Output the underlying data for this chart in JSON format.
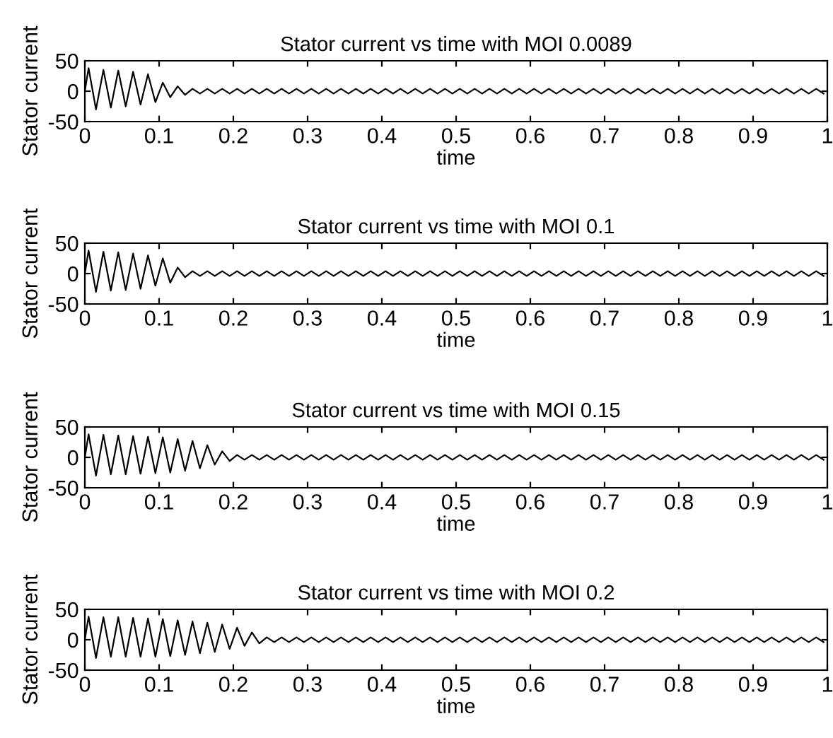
{
  "chart_data": [
    {
      "type": "line",
      "title": "Stator current vs time with MOI 0.0089",
      "xlabel": "time",
      "ylabel": "Stator current",
      "xlim": [
        0,
        1
      ],
      "ylim": [
        -50,
        50
      ],
      "xticks": [
        0,
        0.1,
        0.2,
        0.3,
        0.4,
        0.5,
        0.6,
        0.7,
        0.8,
        0.9,
        1
      ],
      "yticks": [
        -50,
        0,
        50
      ],
      "x": [
        0,
        0.005,
        0.015,
        0.025,
        0.035,
        0.045,
        0.055,
        0.065,
        0.075,
        0.085,
        0.095,
        0.105,
        0.115,
        0.125,
        0.135,
        0.145,
        0.155,
        0.165,
        0.175,
        0.185,
        0.195,
        0.205,
        0.215,
        0.225,
        0.235,
        0.245,
        0.255,
        0.265,
        0.275,
        0.285,
        0.295,
        0.305,
        0.315,
        0.325,
        0.335,
        0.345,
        0.355,
        0.365,
        0.375,
        0.385,
        0.395,
        0.405,
        0.415,
        0.425,
        0.435,
        0.445,
        0.455,
        0.465,
        0.475,
        0.485,
        0.495,
        0.505,
        0.515,
        0.525,
        0.535,
        0.545,
        0.555,
        0.565,
        0.575,
        0.585,
        0.595,
        0.605,
        0.615,
        0.625,
        0.635,
        0.645,
        0.655,
        0.665,
        0.675,
        0.685,
        0.695,
        0.705,
        0.715,
        0.725,
        0.735,
        0.745,
        0.755,
        0.765,
        0.775,
        0.785,
        0.795,
        0.805,
        0.815,
        0.825,
        0.835,
        0.845,
        0.855,
        0.865,
        0.875,
        0.885,
        0.895,
        0.905,
        0.915,
        0.925,
        0.935,
        0.945,
        0.955,
        0.965,
        0.975,
        0.985,
        0.995
      ],
      "series": [
        {
          "color": "#000000",
          "values": [
            0,
            38,
            -30,
            35,
            -27,
            34,
            -25,
            32,
            -22,
            28,
            -18,
            14,
            -10,
            8,
            -6,
            4,
            -4,
            4,
            -4,
            4,
            -4,
            4,
            -4,
            4,
            -4,
            4,
            -4,
            4,
            -4,
            4,
            -4,
            4,
            -4,
            4,
            -4,
            4,
            -4,
            4,
            -4,
            4,
            -4,
            4,
            -4,
            4,
            -4,
            4,
            -4,
            4,
            -4,
            4,
            -4,
            4,
            -4,
            4,
            -4,
            4,
            -4,
            4,
            -4,
            4,
            -4,
            4,
            -4,
            4,
            -4,
            4,
            -4,
            4,
            -4,
            4,
            -4,
            4,
            -4,
            4,
            -4,
            4,
            -4,
            4,
            -4,
            4,
            -4,
            4,
            -4,
            4,
            -4,
            4,
            -4,
            4,
            -4,
            4,
            -4,
            4,
            -4,
            4,
            -4,
            4,
            -4,
            4,
            -4,
            4,
            -4
          ]
        }
      ]
    },
    {
      "type": "line",
      "title": "Stator current vs time with MOI 0.1",
      "xlabel": "time",
      "ylabel": "Stator current",
      "xlim": [
        0,
        1
      ],
      "ylim": [
        -50,
        50
      ],
      "xticks": [
        0,
        0.1,
        0.2,
        0.3,
        0.4,
        0.5,
        0.6,
        0.7,
        0.8,
        0.9,
        1
      ],
      "yticks": [
        -50,
        0,
        50
      ],
      "x": [
        0,
        0.005,
        0.015,
        0.025,
        0.035,
        0.045,
        0.055,
        0.065,
        0.075,
        0.085,
        0.095,
        0.105,
        0.115,
        0.125,
        0.135,
        0.145,
        0.155,
        0.165,
        0.175,
        0.185,
        0.195,
        0.205,
        0.215,
        0.225,
        0.235,
        0.245,
        0.255,
        0.265,
        0.275,
        0.285,
        0.295,
        0.305,
        0.315,
        0.325,
        0.335,
        0.345,
        0.355,
        0.365,
        0.375,
        0.385,
        0.395,
        0.405,
        0.415,
        0.425,
        0.435,
        0.445,
        0.455,
        0.465,
        0.475,
        0.485,
        0.495,
        0.505,
        0.515,
        0.525,
        0.535,
        0.545,
        0.555,
        0.565,
        0.575,
        0.585,
        0.595,
        0.605,
        0.615,
        0.625,
        0.635,
        0.645,
        0.655,
        0.665,
        0.675,
        0.685,
        0.695,
        0.705,
        0.715,
        0.725,
        0.735,
        0.745,
        0.755,
        0.765,
        0.775,
        0.785,
        0.795,
        0.805,
        0.815,
        0.825,
        0.835,
        0.845,
        0.855,
        0.865,
        0.875,
        0.885,
        0.895,
        0.905,
        0.915,
        0.925,
        0.935,
        0.945,
        0.955,
        0.965,
        0.975,
        0.985,
        0.995
      ],
      "series": [
        {
          "color": "#000000",
          "values": [
            0,
            38,
            -30,
            36,
            -28,
            35,
            -27,
            33,
            -25,
            30,
            -20,
            25,
            -15,
            10,
            -6,
            4,
            -4,
            4,
            -4,
            4,
            -4,
            4,
            -4,
            4,
            -4,
            4,
            -4,
            4,
            -4,
            4,
            -4,
            4,
            -4,
            4,
            -4,
            4,
            -4,
            4,
            -4,
            4,
            -4,
            4,
            -4,
            4,
            -4,
            4,
            -4,
            4,
            -4,
            4,
            -4,
            4,
            -4,
            4,
            -4,
            4,
            -4,
            4,
            -4,
            4,
            -4,
            4,
            -4,
            4,
            -4,
            4,
            -4,
            4,
            -4,
            4,
            -4,
            4,
            -4,
            4,
            -4,
            4,
            -4,
            4,
            -4,
            4,
            -4,
            4,
            -4,
            4,
            -4,
            4,
            -4,
            4,
            -4,
            4,
            -4,
            4,
            -4,
            4,
            -4,
            4,
            -4,
            4,
            -4,
            4,
            -4
          ]
        }
      ]
    },
    {
      "type": "line",
      "title": "Stator current vs time with MOI 0.15",
      "xlabel": "time",
      "ylabel": "Stator current",
      "xlim": [
        0,
        1
      ],
      "ylim": [
        -50,
        50
      ],
      "xticks": [
        0,
        0.1,
        0.2,
        0.3,
        0.4,
        0.5,
        0.6,
        0.7,
        0.8,
        0.9,
        1
      ],
      "yticks": [
        -50,
        0,
        50
      ],
      "x": [
        0,
        0.005,
        0.015,
        0.025,
        0.035,
        0.045,
        0.055,
        0.065,
        0.075,
        0.085,
        0.095,
        0.105,
        0.115,
        0.125,
        0.135,
        0.145,
        0.155,
        0.165,
        0.175,
        0.185,
        0.195,
        0.205,
        0.215,
        0.225,
        0.235,
        0.245,
        0.255,
        0.265,
        0.275,
        0.285,
        0.295,
        0.305,
        0.315,
        0.325,
        0.335,
        0.345,
        0.355,
        0.365,
        0.375,
        0.385,
        0.395,
        0.405,
        0.415,
        0.425,
        0.435,
        0.445,
        0.455,
        0.465,
        0.475,
        0.485,
        0.495,
        0.505,
        0.515,
        0.525,
        0.535,
        0.545,
        0.555,
        0.565,
        0.575,
        0.585,
        0.595,
        0.605,
        0.615,
        0.625,
        0.635,
        0.645,
        0.655,
        0.665,
        0.675,
        0.685,
        0.695,
        0.705,
        0.715,
        0.725,
        0.735,
        0.745,
        0.755,
        0.765,
        0.775,
        0.785,
        0.795,
        0.805,
        0.815,
        0.825,
        0.835,
        0.845,
        0.855,
        0.865,
        0.875,
        0.885,
        0.895,
        0.905,
        0.915,
        0.925,
        0.935,
        0.945,
        0.955,
        0.965,
        0.975,
        0.985,
        0.995
      ],
      "series": [
        {
          "color": "#000000",
          "values": [
            0,
            38,
            -30,
            37,
            -28,
            36,
            -28,
            35,
            -27,
            34,
            -26,
            33,
            -25,
            30,
            -22,
            27,
            -18,
            20,
            -12,
            10,
            -6,
            4,
            -4,
            4,
            -4,
            4,
            -4,
            4,
            -4,
            4,
            -4,
            4,
            -4,
            4,
            -4,
            4,
            -4,
            4,
            -4,
            4,
            -4,
            4,
            -4,
            4,
            -4,
            4,
            -4,
            4,
            -4,
            4,
            -4,
            4,
            -4,
            4,
            -4,
            4,
            -4,
            4,
            -4,
            4,
            -4,
            4,
            -4,
            4,
            -4,
            4,
            -4,
            4,
            -4,
            4,
            -4,
            4,
            -4,
            4,
            -4,
            4,
            -4,
            4,
            -4,
            4,
            -4,
            4,
            -4,
            4,
            -4,
            4,
            -4,
            4,
            -4,
            4,
            -4,
            4,
            -4,
            4,
            -4,
            4,
            -4,
            4,
            -4,
            4,
            -4
          ]
        }
      ]
    },
    {
      "type": "line",
      "title": "Stator current vs time with MOI 0.2",
      "xlabel": "time",
      "ylabel": "Stator current",
      "xlim": [
        0,
        1
      ],
      "ylim": [
        -50,
        50
      ],
      "xticks": [
        0,
        0.1,
        0.2,
        0.3,
        0.4,
        0.5,
        0.6,
        0.7,
        0.8,
        0.9,
        1
      ],
      "yticks": [
        -50,
        0,
        50
      ],
      "x": [
        0,
        0.005,
        0.015,
        0.025,
        0.035,
        0.045,
        0.055,
        0.065,
        0.075,
        0.085,
        0.095,
        0.105,
        0.115,
        0.125,
        0.135,
        0.145,
        0.155,
        0.165,
        0.175,
        0.185,
        0.195,
        0.205,
        0.215,
        0.225,
        0.235,
        0.245,
        0.255,
        0.265,
        0.275,
        0.285,
        0.295,
        0.305,
        0.315,
        0.325,
        0.335,
        0.345,
        0.355,
        0.365,
        0.375,
        0.385,
        0.395,
        0.405,
        0.415,
        0.425,
        0.435,
        0.445,
        0.455,
        0.465,
        0.475,
        0.485,
        0.495,
        0.505,
        0.515,
        0.525,
        0.535,
        0.545,
        0.555,
        0.565,
        0.575,
        0.585,
        0.595,
        0.605,
        0.615,
        0.625,
        0.635,
        0.645,
        0.655,
        0.665,
        0.675,
        0.685,
        0.695,
        0.705,
        0.715,
        0.725,
        0.735,
        0.745,
        0.755,
        0.765,
        0.775,
        0.785,
        0.795,
        0.805,
        0.815,
        0.825,
        0.835,
        0.845,
        0.855,
        0.865,
        0.875,
        0.885,
        0.895,
        0.905,
        0.915,
        0.925,
        0.935,
        0.945,
        0.955,
        0.965,
        0.975,
        0.985,
        0.995
      ],
      "series": [
        {
          "color": "#000000",
          "values": [
            0,
            38,
            -30,
            37,
            -28,
            37,
            -28,
            36,
            -28,
            35,
            -28,
            34,
            -27,
            32,
            -25,
            30,
            -22,
            28,
            -20,
            25,
            -15,
            20,
            -10,
            12,
            -6,
            4,
            -4,
            4,
            -4,
            4,
            -4,
            4,
            -4,
            4,
            -4,
            4,
            -4,
            4,
            -4,
            4,
            -4,
            4,
            -4,
            4,
            -4,
            4,
            -4,
            4,
            -4,
            4,
            -4,
            4,
            -4,
            4,
            -4,
            4,
            -4,
            4,
            -4,
            4,
            -4,
            4,
            -4,
            4,
            -4,
            4,
            -4,
            4,
            -4,
            4,
            -4,
            4,
            -4,
            4,
            -4,
            4,
            -4,
            4,
            -4,
            4,
            -4,
            4,
            -4,
            4,
            -4,
            4,
            -4,
            4,
            -4,
            4,
            -4,
            4,
            -4,
            4,
            -4,
            4,
            -4,
            4,
            -4,
            4,
            -4
          ]
        }
      ]
    }
  ]
}
